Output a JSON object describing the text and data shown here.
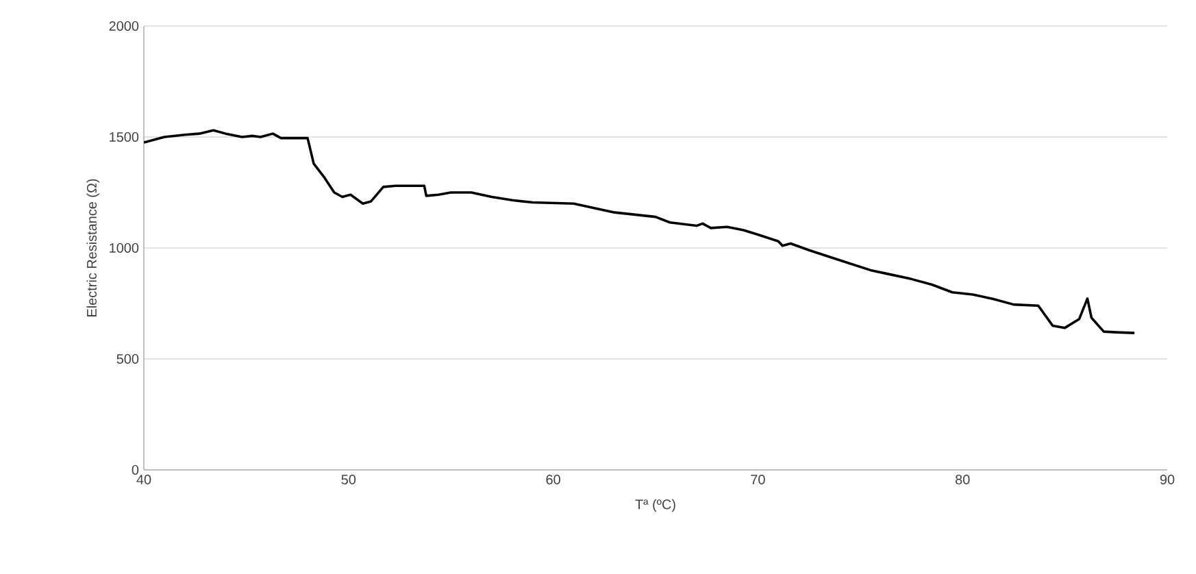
{
  "chart_data": {
    "type": "line",
    "xlabel": "Tª (ºC)",
    "ylabel": "Electric Resistance (Ω)",
    "series": [
      {
        "color": "#000000",
        "x": [
          40,
          41,
          42,
          42.7,
          43.4,
          44,
          44.8,
          45.3,
          45.7,
          46.3,
          46.7,
          48,
          48.3,
          48.8,
          49.3,
          49.7,
          50.1,
          50.7,
          51.1,
          51.7,
          52.3,
          53.7,
          53.8,
          54.4,
          55,
          56,
          57,
          58,
          59,
          61,
          62,
          63,
          64,
          65,
          65.7,
          67,
          67.3,
          67.7,
          68.5,
          69.3,
          70,
          71,
          71.2,
          71.6,
          72.5,
          73.5,
          74.5,
          75.5,
          76.5,
          77.5,
          78.5,
          79.5,
          80.5,
          81.5,
          82.5,
          83.7,
          84.4,
          85.0,
          85.7,
          86.1,
          86.3,
          86.9,
          87.5,
          88.4
        ],
        "values": [
          1475,
          1500,
          1510,
          1515,
          1530,
          1515,
          1500,
          1505,
          1500,
          1515,
          1495,
          1495,
          1380,
          1320,
          1250,
          1230,
          1240,
          1200,
          1210,
          1275,
          1280,
          1280,
          1235,
          1240,
          1250,
          1250,
          1230,
          1215,
          1205,
          1200,
          1180,
          1160,
          1150,
          1140,
          1115,
          1100,
          1110,
          1090,
          1095,
          1080,
          1060,
          1030,
          1010,
          1020,
          990,
          960,
          930,
          900,
          880,
          860,
          835,
          800,
          790,
          770,
          745,
          740,
          650,
          640,
          680,
          772,
          685,
          623,
          620,
          617
        ]
      }
    ],
    "xlim": [
      40,
      90
    ],
    "ylim": [
      0,
      2000
    ],
    "xticks": [
      40,
      50,
      60,
      70,
      80,
      90
    ],
    "yticks": [
      0,
      500,
      1000,
      1500,
      2000
    ],
    "grid": "y",
    "marker": "none",
    "line_style": "solid"
  }
}
